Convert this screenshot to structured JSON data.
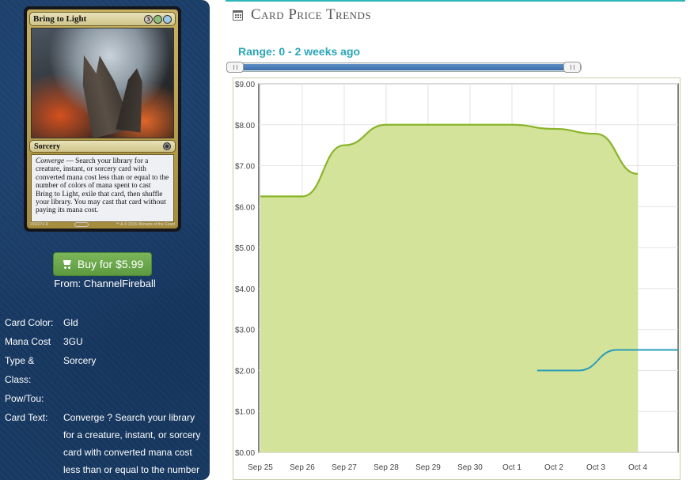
{
  "card": {
    "name": "Bring to Light",
    "mana_symbols": [
      {
        "symbol": "3",
        "color": "#cfc6b8"
      },
      {
        "symbol": "G",
        "color": "#8fbf7a"
      },
      {
        "symbol": "U",
        "color": "#9ec9e6"
      }
    ],
    "type_line": "Sorcery",
    "rules_keyword": "Converge",
    "rules_text": " — Search your library for a creature, instant, or sorcery card with converted mana cost less than or equal to the number of colors of mana spent to cast Bring to Light, exile that card, then shuffle your library. You may cast that card without paying its mana cost.",
    "collector_number": "209/274 R",
    "copyright": "™ & © 2015 Wizards of the Coast"
  },
  "buy": {
    "label": "Buy for $5.99",
    "from": "From: ChannelFireball"
  },
  "properties": [
    {
      "label": "Card Color:",
      "value": "Gld"
    },
    {
      "label": "Mana Cost",
      "value": "3GU"
    },
    {
      "label": "Type & Class:",
      "value": "Sorcery"
    },
    {
      "label": "Pow/Tou:",
      "value": ""
    },
    {
      "label": "Card Text:",
      "value": "Converge ? Search your library for a creature, instant, or sorcery card with converted mana cost less than or equal to the number of colors of mana"
    }
  ],
  "section": {
    "title": "Card Price Trends",
    "range_label": "Range: 0 - 2 weeks ago",
    "range_start_fraction": 0.0,
    "range_end_fraction": 1.0
  },
  "colors": {
    "accent": "#2bb5b8",
    "sidebar_bg": "#183a63",
    "buy_button": "#6aaa4b",
    "series_paper": "#8ab42a",
    "series_paper_fill": "#d3e39a",
    "series_foil": "#2a9db8"
  },
  "chart_data": {
    "type": "area",
    "title": "",
    "xlabel": "",
    "ylabel": "",
    "ylim": [
      0,
      9
    ],
    "x_ticks": [
      "Sep 25",
      "Sep 26",
      "Sep 27",
      "Sep 28",
      "Sep 29",
      "Sep 30",
      "Oct 1",
      "Oct 2",
      "Oct 3",
      "Oct 4"
    ],
    "y_ticks": [
      "$0.00",
      "$1.00",
      "$2.00",
      "$3.00",
      "$4.00",
      "$5.00",
      "$6.00",
      "$7.00",
      "$8.00",
      "$9.00"
    ],
    "x_range": [
      0,
      10
    ],
    "grid": true,
    "series": [
      {
        "x": [
          0,
          1,
          2,
          3,
          4,
          5,
          6,
          7,
          8,
          9
        ],
        "values": [
          6.25,
          6.25,
          7.5,
          8.0,
          8.0,
          8.0,
          8.0,
          7.9,
          7.78,
          6.8
        ],
        "style": "area"
      },
      {
        "x": [
          6.6,
          7.6,
          8.5,
          10
        ],
        "values": [
          2.0,
          2.0,
          2.5,
          2.5
        ],
        "style": "line"
      }
    ]
  }
}
